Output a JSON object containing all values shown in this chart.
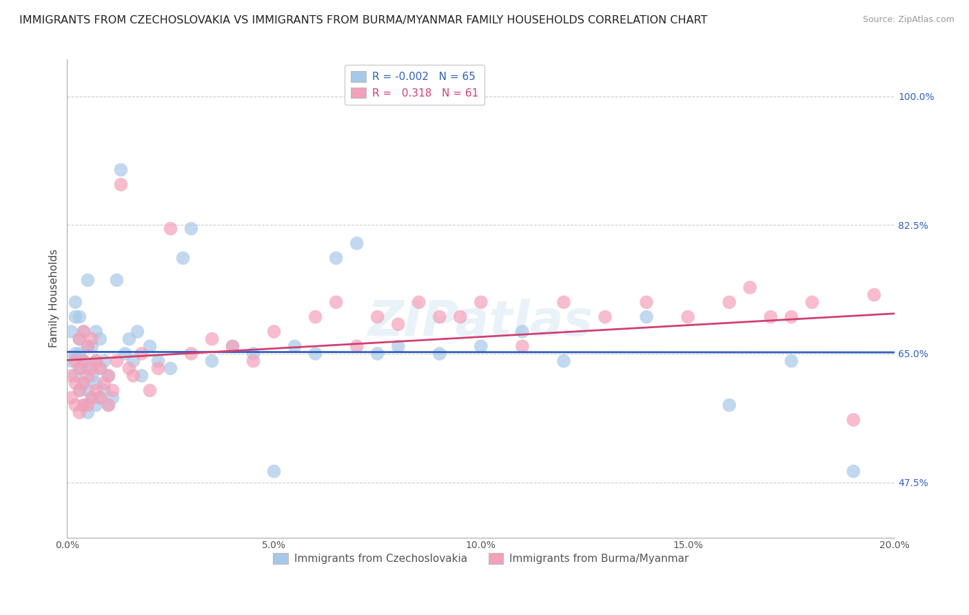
{
  "title": "IMMIGRANTS FROM CZECHOSLOVAKIA VS IMMIGRANTS FROM BURMA/MYANMAR FAMILY HOUSEHOLDS CORRELATION CHART",
  "source": "Source: ZipAtlas.com",
  "ylabel": "Family Households",
  "xlim": [
    0.0,
    0.2
  ],
  "ylim": [
    0.4,
    1.05
  ],
  "yticks": [
    0.475,
    0.65,
    0.825,
    1.0
  ],
  "ytick_labels": [
    "47.5%",
    "65.0%",
    "82.5%",
    "100.0%"
  ],
  "xticks": [
    0.0,
    0.05,
    0.1,
    0.15,
    0.2
  ],
  "xtick_labels": [
    "0.0%",
    "5.0%",
    "10.0%",
    "15.0%",
    "20.0%"
  ],
  "legend1_label": "Immigrants from Czechoslovakia",
  "legend2_label": "Immigrants from Burma/Myanmar",
  "R_blue": -0.002,
  "N_blue": 65,
  "R_pink": 0.318,
  "N_pink": 61,
  "blue_color": "#a8c8e8",
  "pink_color": "#f4a0b8",
  "blue_line_color": "#3060c0",
  "pink_line_color": "#d04070",
  "background_color": "#ffffff",
  "grid_color": "#cccccc",
  "title_fontsize": 11.5,
  "source_fontsize": 9,
  "axis_label_fontsize": 11,
  "tick_fontsize": 10,
  "legend_fontsize": 11,
  "blue_x": [
    0.001,
    0.001,
    0.002,
    0.002,
    0.002,
    0.002,
    0.003,
    0.003,
    0.003,
    0.003,
    0.003,
    0.004,
    0.004,
    0.004,
    0.004,
    0.005,
    0.005,
    0.005,
    0.005,
    0.005,
    0.006,
    0.006,
    0.006,
    0.007,
    0.007,
    0.007,
    0.007,
    0.008,
    0.008,
    0.008,
    0.009,
    0.009,
    0.01,
    0.01,
    0.011,
    0.012,
    0.013,
    0.014,
    0.015,
    0.016,
    0.017,
    0.018,
    0.02,
    0.022,
    0.025,
    0.028,
    0.03,
    0.035,
    0.04,
    0.045,
    0.05,
    0.055,
    0.06,
    0.065,
    0.07,
    0.075,
    0.08,
    0.09,
    0.1,
    0.11,
    0.12,
    0.14,
    0.16,
    0.175,
    0.19
  ],
  "blue_y": [
    0.64,
    0.68,
    0.62,
    0.65,
    0.7,
    0.72,
    0.6,
    0.63,
    0.65,
    0.67,
    0.7,
    0.58,
    0.61,
    0.64,
    0.68,
    0.57,
    0.6,
    0.63,
    0.66,
    0.75,
    0.59,
    0.62,
    0.66,
    0.58,
    0.61,
    0.64,
    0.68,
    0.59,
    0.63,
    0.67,
    0.6,
    0.64,
    0.58,
    0.62,
    0.59,
    0.75,
    0.9,
    0.65,
    0.67,
    0.64,
    0.68,
    0.62,
    0.66,
    0.64,
    0.63,
    0.78,
    0.82,
    0.64,
    0.66,
    0.65,
    0.49,
    0.66,
    0.65,
    0.78,
    0.8,
    0.65,
    0.66,
    0.65,
    0.66,
    0.68,
    0.64,
    0.7,
    0.58,
    0.64,
    0.49
  ],
  "pink_x": [
    0.001,
    0.001,
    0.002,
    0.002,
    0.002,
    0.003,
    0.003,
    0.003,
    0.003,
    0.004,
    0.004,
    0.004,
    0.004,
    0.005,
    0.005,
    0.005,
    0.006,
    0.006,
    0.006,
    0.007,
    0.007,
    0.008,
    0.008,
    0.009,
    0.01,
    0.01,
    0.011,
    0.012,
    0.013,
    0.015,
    0.016,
    0.018,
    0.02,
    0.022,
    0.025,
    0.03,
    0.035,
    0.04,
    0.045,
    0.05,
    0.06,
    0.065,
    0.07,
    0.075,
    0.08,
    0.085,
    0.09,
    0.095,
    0.1,
    0.11,
    0.12,
    0.13,
    0.14,
    0.15,
    0.16,
    0.165,
    0.17,
    0.175,
    0.18,
    0.19,
    0.195
  ],
  "pink_y": [
    0.59,
    0.62,
    0.58,
    0.61,
    0.64,
    0.57,
    0.6,
    0.63,
    0.67,
    0.58,
    0.61,
    0.64,
    0.68,
    0.58,
    0.62,
    0.66,
    0.59,
    0.63,
    0.67,
    0.6,
    0.64,
    0.59,
    0.63,
    0.61,
    0.58,
    0.62,
    0.6,
    0.64,
    0.88,
    0.63,
    0.62,
    0.65,
    0.6,
    0.63,
    0.82,
    0.65,
    0.67,
    0.66,
    0.64,
    0.68,
    0.7,
    0.72,
    0.66,
    0.7,
    0.69,
    0.72,
    0.7,
    0.7,
    0.72,
    0.66,
    0.72,
    0.7,
    0.72,
    0.7,
    0.72,
    0.74,
    0.7,
    0.7,
    0.72,
    0.56,
    0.73
  ]
}
